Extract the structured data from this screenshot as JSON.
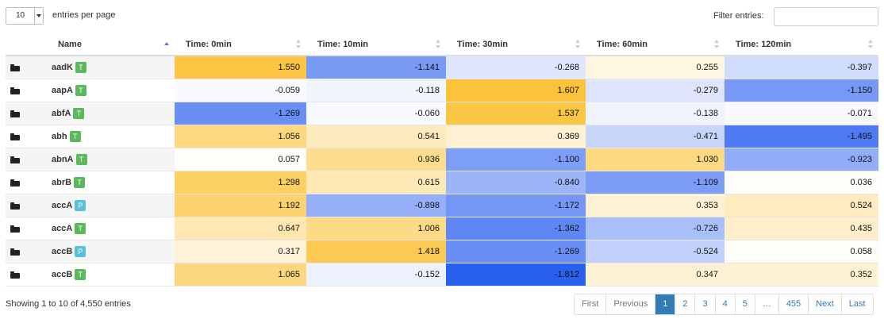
{
  "length_menu": {
    "value": "10",
    "label": "entries per page"
  },
  "filter": {
    "label": "Filter entries:",
    "value": ""
  },
  "columns": [
    "Name",
    "Time: 0min",
    "Time: 10min",
    "Time: 30min",
    "Time: 60min",
    "Time: 120min"
  ],
  "rows": [
    {
      "name": "aadK",
      "badge": "T",
      "values": [
        "1.550",
        "-1.141",
        "-0.268",
        "0.255",
        "-0.397"
      ]
    },
    {
      "name": "aapA",
      "badge": "T",
      "values": [
        "-0.059",
        "-0.118",
        "1.607",
        "-0.279",
        "-1.150"
      ]
    },
    {
      "name": "abfA",
      "badge": "T",
      "values": [
        "-1.269",
        "-0.060",
        "1.537",
        "-0.138",
        "-0.071"
      ]
    },
    {
      "name": "abh",
      "badge": "T",
      "values": [
        "1.056",
        "0.541",
        "0.369",
        "-0.471",
        "-1.495"
      ]
    },
    {
      "name": "abnA",
      "badge": "T",
      "values": [
        "0.057",
        "0.936",
        "-1.100",
        "1.030",
        "-0.923"
      ]
    },
    {
      "name": "abrB",
      "badge": "T",
      "values": [
        "1.298",
        "0.615",
        "-0.840",
        "-1.109",
        "0.036"
      ]
    },
    {
      "name": "accA",
      "badge": "P",
      "values": [
        "1.192",
        "-0.898",
        "-1.172",
        "0.353",
        "0.524"
      ]
    },
    {
      "name": "accA",
      "badge": "T",
      "values": [
        "0.647",
        "1.006",
        "-1.362",
        "-0.726",
        "0.435"
      ]
    },
    {
      "name": "accB",
      "badge": "P",
      "values": [
        "0.317",
        "1.418",
        "-1.269",
        "-0.524",
        "0.058"
      ]
    },
    {
      "name": "accB",
      "badge": "T",
      "values": [
        "1.065",
        "-0.152",
        "-1.812",
        "0.347",
        "0.352"
      ]
    }
  ],
  "badge_colors": {
    "T": "#5cb85c",
    "P": "#5bc0de"
  },
  "heat_colors": {
    "positive": "#fbbc25",
    "negative": "#2a60f0",
    "neutral": "#ffffff"
  },
  "info": "Showing 1 to 10 of 4,550 entries",
  "pagination": [
    "First",
    "Previous",
    "1",
    "2",
    "3",
    "4",
    "5",
    "…",
    "455",
    "Next",
    "Last"
  ],
  "pagination_active": "1",
  "pagination_disabled": [
    "First",
    "Previous"
  ]
}
